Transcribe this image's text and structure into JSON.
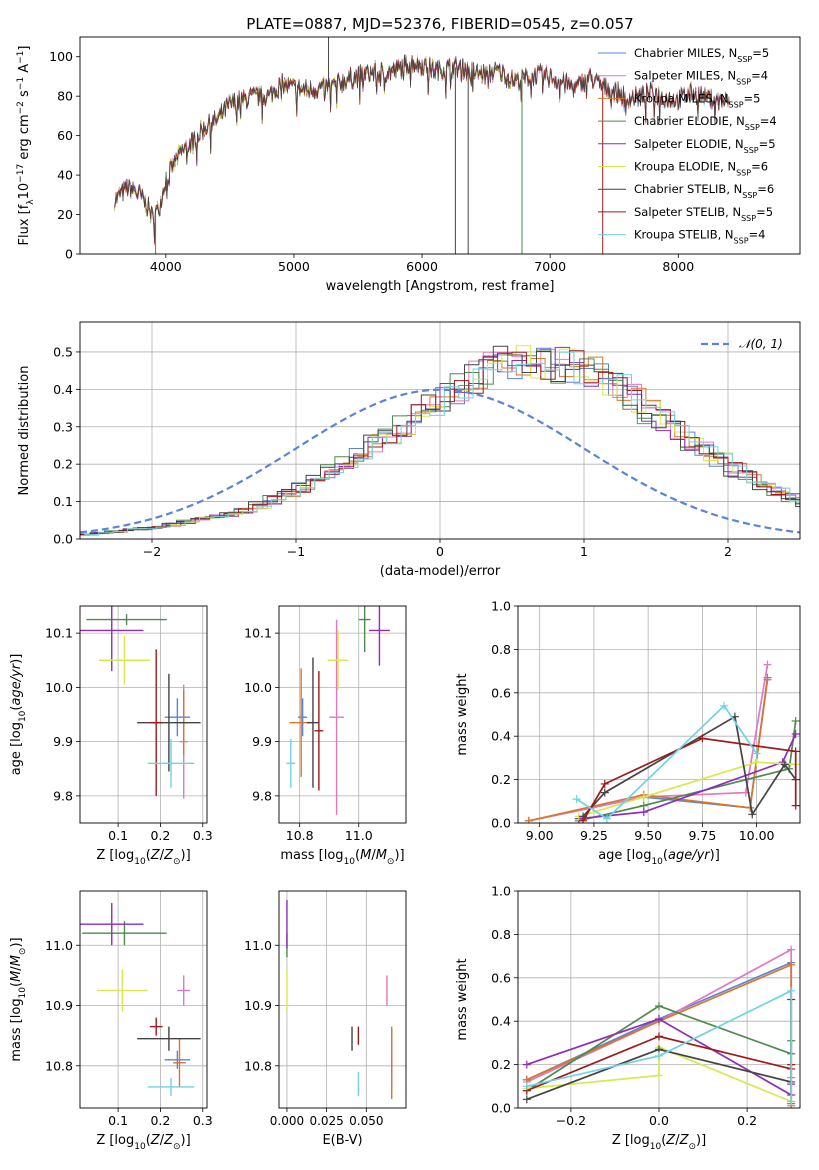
{
  "figure": {
    "title": "PLATE=0887, MJD=52376, FIBERID=0545, z=0.057"
  },
  "chart_data": [
    {
      "id": "spectrum",
      "type": "line",
      "xlabel": "wavelength [Angstrom, rest frame]",
      "ylabel": "Flux [f_λ10^-17 erg cm^-2 s^-1 A^-1]",
      "xlim": [
        3330,
        8950
      ],
      "ylim": [
        0,
        110
      ],
      "xticks": [
        4000,
        5000,
        6000,
        7000,
        8000
      ],
      "yticks": [
        0,
        20,
        40,
        60,
        80,
        100
      ],
      "grid": false,
      "legend_position": "top-right",
      "anchors": [
        [
          3600,
          27
        ],
        [
          3700,
          34
        ],
        [
          3800,
          30
        ],
        [
          3850,
          25
        ],
        [
          3900,
          18
        ],
        [
          3950,
          24
        ],
        [
          4000,
          38
        ],
        [
          4100,
          50
        ],
        [
          4200,
          57
        ],
        [
          4300,
          64
        ],
        [
          4400,
          68
        ],
        [
          4500,
          76
        ],
        [
          4600,
          78
        ],
        [
          4700,
          80
        ],
        [
          4800,
          80
        ],
        [
          4900,
          86
        ],
        [
          5000,
          84
        ],
        [
          5100,
          83
        ],
        [
          5200,
          84
        ],
        [
          5300,
          85
        ],
        [
          5400,
          88
        ],
        [
          5500,
          90
        ],
        [
          5600,
          92
        ],
        [
          5700,
          92
        ],
        [
          5800,
          93
        ],
        [
          5900,
          97
        ],
        [
          6000,
          96
        ],
        [
          6100,
          93
        ],
        [
          6200,
          94
        ],
        [
          6300,
          95
        ],
        [
          6400,
          92
        ],
        [
          6500,
          91
        ],
        [
          6600,
          93
        ],
        [
          6700,
          88
        ],
        [
          6800,
          89
        ],
        [
          6900,
          91
        ],
        [
          7000,
          90
        ],
        [
          7100,
          87
        ],
        [
          7200,
          84
        ],
        [
          7300,
          90
        ],
        [
          7400,
          85
        ],
        [
          7500,
          83
        ],
        [
          7600,
          79
        ],
        [
          7700,
          80
        ],
        [
          7800,
          82
        ],
        [
          7900,
          79
        ],
        [
          8000,
          78
        ],
        [
          8100,
          82
        ],
        [
          8200,
          80
        ],
        [
          8300,
          78
        ],
        [
          8400,
          77
        ]
      ],
      "spikes": [
        {
          "x": 3920,
          "y": 0,
          "series": "Chabrier ELODIE"
        },
        {
          "x": 5270,
          "y": 110,
          "series": "Chabrier STELIB"
        },
        {
          "x": 6260,
          "y": 0,
          "series": "Chabrier STELIB"
        },
        {
          "x": 6360,
          "y": 0,
          "series": "Chabrier STELIB"
        },
        {
          "x": 6780,
          "y": 0,
          "series": "Chabrier ELODIE"
        },
        {
          "x": 7410,
          "y": 0,
          "series": "Salpeter STELIB"
        }
      ],
      "series": [
        {
          "label": "Chabrier MILES, N",
          "sub": "SSP",
          "n": "=5",
          "color": "#5b84d6",
          "xmax": 8400
        },
        {
          "label": "Salpeter MILES, N",
          "sub": "SSP",
          "n": "=4",
          "color": "#e377c2",
          "xmax": 8400
        },
        {
          "label": "Kroupa MILES, N",
          "sub": "SSP",
          "n": "=5",
          "color": "#d9772b",
          "xmax": 8400
        },
        {
          "label": "Chabrier ELODIE, N",
          "sub": "SSP",
          "n": "=4",
          "color": "#4e8a4e",
          "xmax": 6800
        },
        {
          "label": "Salpeter ELODIE, N",
          "sub": "SSP",
          "n": "=5",
          "color": "#8e2db8",
          "xmax": 6800
        },
        {
          "label": "Kroupa ELODIE, N",
          "sub": "SSP",
          "n": "=6",
          "color": "#d9e84f",
          "xmax": 6800
        },
        {
          "label": "Chabrier STELIB, N",
          "sub": "SSP",
          "n": "=6",
          "color": "#444444",
          "xmax": 8400
        },
        {
          "label": "Salpeter STELIB, N",
          "sub": "SSP",
          "n": "=5",
          "color": "#9e1a1a",
          "xmax": 8400
        },
        {
          "label": "Kroupa STELIB, N",
          "sub": "SSP",
          "n": "=4",
          "color": "#6fd3e0",
          "xmax": 8400
        }
      ]
    },
    {
      "id": "residuals",
      "type": "histogram",
      "xlabel": "(data-model)/error",
      "ylabel": "Normed distribution",
      "xlim": [
        -2.5,
        2.5
      ],
      "ylim": [
        0,
        0.58
      ],
      "xticks": [
        -2,
        -1,
        0,
        1,
        2
      ],
      "yticks": [
        0.0,
        0.1,
        0.2,
        0.3,
        0.4,
        0.5
      ],
      "grid": true,
      "bin_width": 0.1,
      "bin_start": -2.5,
      "base_hist": [
        0.012,
        0.016,
        0.02,
        0.025,
        0.028,
        0.032,
        0.038,
        0.045,
        0.052,
        0.06,
        0.068,
        0.078,
        0.09,
        0.105,
        0.12,
        0.14,
        0.16,
        0.18,
        0.205,
        0.23,
        0.255,
        0.28,
        0.305,
        0.33,
        0.355,
        0.38,
        0.405,
        0.43,
        0.45,
        0.47,
        0.48,
        0.475,
        0.47,
        0.465,
        0.46,
        0.445,
        0.425,
        0.4,
        0.375,
        0.345,
        0.315,
        0.29,
        0.26,
        0.235,
        0.21,
        0.185,
        0.165,
        0.145,
        0.125,
        0.11,
        0.095,
        0.082,
        0.07,
        0.06,
        0.05,
        0.042,
        0.035,
        0.029,
        0.024,
        0.02
      ],
      "normal_curve_label": "N(0,1)",
      "normal_curve_color": "#5b84d6",
      "legend_position": "top-right"
    },
    {
      "id": "age_vs_Z",
      "type": "scatter",
      "xlabel": "Z [log10(Z/Z☉)]",
      "ylabel": "age  [log10(age/yr)]",
      "xlim": [
        0.01,
        0.31
      ],
      "ylim": [
        9.75,
        10.15
      ],
      "xticks": [
        0.1,
        0.2,
        0.3
      ],
      "yticks": [
        9.8,
        9.9,
        10.0,
        10.1
      ],
      "grid": true,
      "points": [
        {
          "series": "Chabrier MILES",
          "x": 0.24,
          "xerr": 0.03,
          "y": 9.945,
          "yerr": 0.035
        },
        {
          "series": "Salpeter MILES",
          "x": 0.255,
          "xerr": 0.01,
          "y": 9.9,
          "yerr": 0.105
        },
        {
          "series": "Kroupa MILES",
          "x": 0.255,
          "xerr": 0.01,
          "y": 9.935,
          "yerr": 0.06
        },
        {
          "series": "Chabrier ELODIE",
          "x": 0.12,
          "xerr": 0.095,
          "y": 10.125,
          "yerr": 0.01
        },
        {
          "series": "Salpeter ELODIE",
          "x": 0.085,
          "xerr": 0.075,
          "y": 10.105,
          "yerr": 0.075
        },
        {
          "series": "Kroupa ELODIE",
          "x": 0.115,
          "xerr": 0.06,
          "y": 10.05,
          "yerr": 0.045
        },
        {
          "series": "Chabrier STELIB",
          "x": 0.22,
          "xerr": 0.075,
          "y": 9.935,
          "yerr": 0.09
        },
        {
          "series": "Salpeter STELIB",
          "x": 0.19,
          "xerr": 0.015,
          "y": 9.935,
          "yerr": 0.135
        },
        {
          "series": "Kroupa STELIB",
          "x": 0.225,
          "xerr": 0.055,
          "y": 9.86,
          "yerr": 0.045
        }
      ]
    },
    {
      "id": "age_vs_mass",
      "type": "scatter",
      "xlabel": "mass [log10(M/M☉)]",
      "ylabel": "",
      "xlim": [
        10.73,
        11.16
      ],
      "ylim": [
        9.75,
        10.15
      ],
      "xticks": [
        10.8,
        11.0
      ],
      "yticks": [
        9.8,
        9.9,
        10.0,
        10.1
      ],
      "grid": true,
      "points": [
        {
          "series": "Chabrier MILES",
          "x": 10.81,
          "xerr": 0.015,
          "y": 9.945,
          "yerr": 0.035
        },
        {
          "series": "Salpeter MILES",
          "x": 10.925,
          "xerr": 0.025,
          "y": 9.945,
          "yerr": 0.18
        },
        {
          "series": "Kroupa MILES",
          "x": 10.805,
          "xerr": 0.04,
          "y": 9.935,
          "yerr": 0.1
        },
        {
          "series": "Chabrier ELODIE",
          "x": 11.02,
          "xerr": 0.02,
          "y": 10.125,
          "yerr": 0.06
        },
        {
          "series": "Salpeter ELODIE",
          "x": 11.07,
          "xerr": 0.035,
          "y": 10.105,
          "yerr": 0.065
        },
        {
          "series": "Kroupa ELODIE",
          "x": 10.93,
          "xerr": 0.035,
          "y": 10.05,
          "yerr": 0.055
        },
        {
          "series": "Chabrier STELIB",
          "x": 10.845,
          "xerr": 0.02,
          "y": 9.935,
          "yerr": 0.12
        },
        {
          "series": "Salpeter STELIB",
          "x": 10.865,
          "xerr": 0.015,
          "y": 9.92,
          "yerr": 0.11
        },
        {
          "series": "Kroupa STELIB",
          "x": 10.77,
          "xerr": 0.015,
          "y": 9.86,
          "yerr": 0.045
        }
      ]
    },
    {
      "id": "mass_weight_vs_age",
      "type": "line",
      "xlabel": "age  [log10(age/yr)]",
      "ylabel": "mass weight",
      "xlim": [
        8.9,
        10.2
      ],
      "ylim": [
        0,
        1.0
      ],
      "xticks": [
        9.0,
        9.25,
        9.5,
        9.75,
        10.0
      ],
      "yticks": [
        0.0,
        0.2,
        0.4,
        0.6,
        0.8,
        1.0
      ],
      "grid": true,
      "series": [
        {
          "name": "Chabrier MILES",
          "x": [
            8.95,
            9.48,
            9.97,
            10.05
          ],
          "y": [
            0.01,
            0.12,
            0.07,
            0.67
          ]
        },
        {
          "name": "Salpeter MILES",
          "x": [
            8.95,
            9.48,
            9.95,
            10.05
          ],
          "y": [
            0.01,
            0.12,
            0.14,
            0.73
          ]
        },
        {
          "name": "Kroupa MILES",
          "x": [
            8.95,
            9.48,
            9.97,
            10.05
          ],
          "y": [
            0.01,
            0.13,
            0.07,
            0.66
          ]
        },
        {
          "name": "Chabrier ELODIE",
          "x": [
            9.18,
            9.48,
            10.15,
            10.18
          ],
          "y": [
            0.01,
            0.08,
            0.25,
            0.47
          ]
        },
        {
          "name": "Salpeter ELODIE",
          "x": [
            9.18,
            9.48,
            10.12,
            10.18
          ],
          "y": [
            0.02,
            0.05,
            0.28,
            0.41
          ]
        },
        {
          "name": "Kroupa ELODIE",
          "x": [
            9.18,
            9.48,
            10.0,
            10.18
          ],
          "y": [
            0.03,
            0.12,
            0.28,
            0.27
          ]
        },
        {
          "name": "Chabrier STELIB",
          "x": [
            9.2,
            9.3,
            9.9,
            9.98,
            10.13,
            10.18
          ],
          "y": [
            0.03,
            0.14,
            0.49,
            0.04,
            0.27,
            0.2
          ]
        },
        {
          "name": "Salpeter STELIB",
          "x": [
            9.2,
            9.3,
            9.75,
            10.18,
            10.18
          ],
          "y": [
            0.01,
            0.18,
            0.39,
            0.33,
            0.08
          ]
        },
        {
          "name": "Kroupa STELIB",
          "x": [
            9.17,
            9.31,
            9.85,
            10.0
          ],
          "y": [
            0.11,
            0.02,
            0.54,
            0.32
          ]
        }
      ]
    },
    {
      "id": "mass_vs_Z",
      "type": "scatter",
      "xlabel": "Z [log10(Z/Z☉)]",
      "ylabel": "mass [log10(M/M☉)]",
      "xlim": [
        0.01,
        0.31
      ],
      "ylim": [
        10.73,
        11.09
      ],
      "xticks": [
        0.1,
        0.2,
        0.3
      ],
      "yticks": [
        10.8,
        10.9,
        11.0
      ],
      "grid": true,
      "points": [
        {
          "series": "Chabrier MILES",
          "x": 0.24,
          "xerr": 0.03,
          "y": 10.81,
          "yerr": 0.015
        },
        {
          "series": "Salpeter MILES",
          "x": 0.255,
          "xerr": 0.015,
          "y": 10.925,
          "yerr": 0.025
        },
        {
          "series": "Kroupa MILES",
          "x": 0.245,
          "xerr": 0.015,
          "y": 10.805,
          "yerr": 0.04
        },
        {
          "series": "Chabrier ELODIE",
          "x": 0.115,
          "xerr": 0.1,
          "y": 11.02,
          "yerr": 0.02
        },
        {
          "series": "Salpeter ELODIE",
          "x": 0.085,
          "xerr": 0.075,
          "y": 11.035,
          "yerr": 0.035
        },
        {
          "series": "Kroupa ELODIE",
          "x": 0.11,
          "xerr": 0.06,
          "y": 10.925,
          "yerr": 0.035
        },
        {
          "series": "Chabrier STELIB",
          "x": 0.22,
          "xerr": 0.075,
          "y": 10.845,
          "yerr": 0.02
        },
        {
          "series": "Salpeter STELIB",
          "x": 0.19,
          "xerr": 0.015,
          "y": 10.865,
          "yerr": 0.015
        },
        {
          "series": "Kroupa STELIB",
          "x": 0.225,
          "xerr": 0.055,
          "y": 10.765,
          "yerr": 0.015
        }
      ]
    },
    {
      "id": "mass_vs_ebv",
      "type": "scatter",
      "xlabel": "E(B-V)",
      "ylabel": "",
      "xlim": [
        -0.005,
        0.075
      ],
      "ylim": [
        10.73,
        11.09
      ],
      "xticks": [
        0.0,
        0.025,
        0.05
      ],
      "yticks": [
        10.8,
        10.9,
        11.0
      ],
      "grid": true,
      "points": [
        {
          "series": "Chabrier MILES",
          "x": 0.066,
          "xerr": 0.0,
          "y": 10.81,
          "yerr": 0.05
        },
        {
          "series": "Salpeter MILES",
          "x": 0.063,
          "xerr": 0.0,
          "y": 10.925,
          "yerr": 0.025
        },
        {
          "series": "Kroupa MILES",
          "x": 0.066,
          "xerr": 0.0,
          "y": 10.805,
          "yerr": 0.06
        },
        {
          "series": "Chabrier ELODIE",
          "x": 0.0,
          "xerr": 0.0,
          "y": 11.0,
          "yerr": 0.02
        },
        {
          "series": "Salpeter ELODIE",
          "x": 0.0,
          "xerr": 0.0,
          "y": 11.035,
          "yerr": 0.04
        },
        {
          "series": "Kroupa ELODIE",
          "x": 0.0,
          "xerr": 0.0,
          "y": 10.925,
          "yerr": 0.035
        },
        {
          "series": "Chabrier STELIB",
          "x": 0.041,
          "xerr": 0.0,
          "y": 10.845,
          "yerr": 0.02
        },
        {
          "series": "Salpeter STELIB",
          "x": 0.045,
          "xerr": 0.0,
          "y": 10.85,
          "yerr": 0.015
        },
        {
          "series": "Kroupa STELIB",
          "x": 0.045,
          "xerr": 0.0,
          "y": 10.77,
          "yerr": 0.02
        }
      ]
    },
    {
      "id": "mass_weight_vs_Z",
      "type": "line",
      "xlabel": "Z [log10(Z/Z☉)]",
      "ylabel": "mass weight",
      "xlim": [
        -0.32,
        0.32
      ],
      "ylim": [
        0,
        1.0
      ],
      "xticks": [
        -0.2,
        0.0,
        0.2
      ],
      "yticks": [
        0.0,
        0.2,
        0.4,
        0.6,
        0.8,
        1.0
      ],
      "grid": true,
      "series": [
        {
          "name": "Chabrier MILES",
          "x": [
            -0.3,
            0.0,
            0.3,
            0.3
          ],
          "y": [
            0.13,
            0.41,
            0.67,
            0.02
          ]
        },
        {
          "name": "Salpeter MILES",
          "x": [
            -0.3,
            0.0,
            0.3,
            0.3
          ],
          "y": [
            0.12,
            0.4,
            0.73,
            0.14
          ]
        },
        {
          "name": "Kroupa MILES",
          "x": [
            -0.3,
            0.0,
            0.3,
            0.3
          ],
          "y": [
            0.13,
            0.4,
            0.66,
            0.01
          ]
        },
        {
          "name": "Chabrier ELODIE",
          "x": [
            -0.3,
            0.0,
            0.3,
            0.3
          ],
          "y": [
            0.08,
            0.47,
            0.25,
            0.31
          ]
        },
        {
          "name": "Salpeter ELODIE",
          "x": [
            -0.3,
            0.0,
            0.3,
            0.3
          ],
          "y": [
            0.2,
            0.41,
            0.06,
            0.11
          ]
        },
        {
          "name": "Kroupa ELODIE",
          "x": [
            -0.3,
            0.0,
            0.0,
            0.3
          ],
          "y": [
            0.09,
            0.15,
            0.28,
            0.03
          ]
        },
        {
          "name": "Chabrier STELIB",
          "x": [
            -0.3,
            0.0,
            0.3,
            0.3
          ],
          "y": [
            0.04,
            0.27,
            0.12,
            0.5
          ]
        },
        {
          "name": "Salpeter STELIB",
          "x": [
            -0.3,
            0.0,
            0.3,
            0.3
          ],
          "y": [
            0.08,
            0.33,
            0.18,
            0.2
          ]
        },
        {
          "name": "Kroupa STELIB",
          "x": [
            -0.3,
            0.0,
            0.3,
            0.3
          ],
          "y": [
            0.1,
            0.24,
            0.54,
            0.03
          ]
        }
      ]
    }
  ]
}
